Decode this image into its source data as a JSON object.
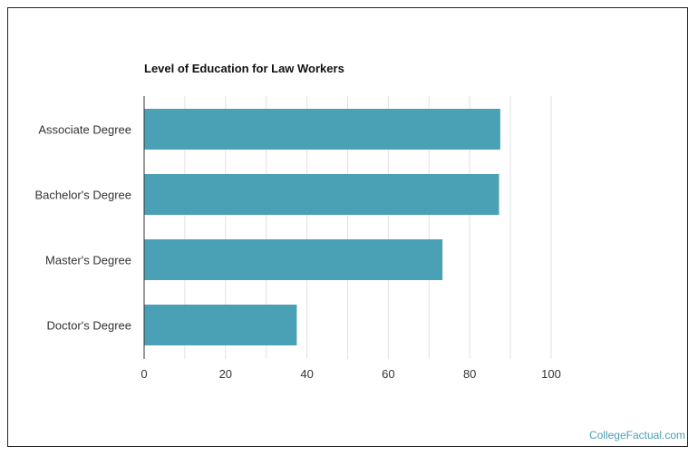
{
  "chart_data": {
    "type": "bar",
    "orientation": "horizontal",
    "title": "Level of Education for Law Workers",
    "categories": [
      "Associate Degree",
      "Bachelor's Degree",
      "Master's Degree",
      "Doctor's Degree"
    ],
    "values": [
      87.5,
      87.2,
      73.3,
      37.5
    ],
    "xlim": [
      0,
      100
    ],
    "xticks": [
      0,
      20,
      40,
      60,
      80,
      100
    ],
    "grid": true,
    "bar_color": "#4aa0b5"
  },
  "footer": {
    "watermark": "CollegeFactual.com"
  }
}
